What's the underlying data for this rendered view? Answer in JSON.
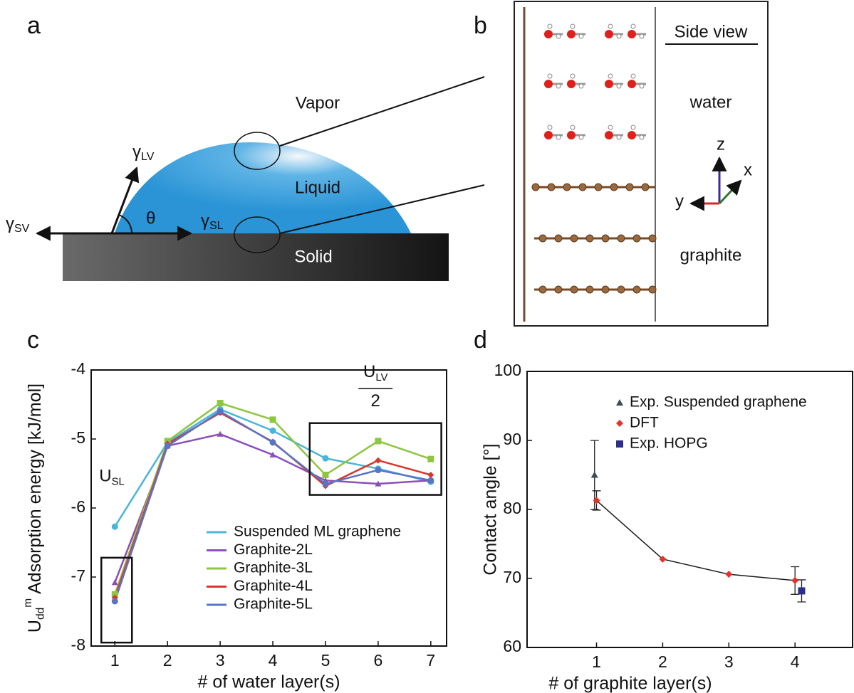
{
  "panel_labels": [
    "a",
    "b",
    "c",
    "d"
  ],
  "diagram_a": {
    "vapor": "Vapor",
    "liquid": "Liquid",
    "solid": "Solid",
    "gamma_lv": {
      "symbol": "γ",
      "sub": "LV"
    },
    "gamma_sl": {
      "symbol": "γ",
      "sub": "SL"
    },
    "gamma_sv": {
      "symbol": "γ",
      "sub": "SV"
    },
    "theta": "θ"
  },
  "diagram_b": {
    "title": "Side  view",
    "water": "water",
    "graphite": "graphite",
    "axes": {
      "z": "z",
      "x": "x",
      "y": "y"
    }
  },
  "chart_data": [
    {
      "type": "line",
      "y_label": {
        "symbol": "U",
        "sub": "dd",
        "sup": "m",
        "text": "Adsorption energy [kJ/mol]"
      },
      "x_label": "# of water layer(s)",
      "x": [
        1,
        2,
        3,
        4,
        5,
        6,
        7
      ],
      "xlim": [
        0.55,
        7.3
      ],
      "xticks": [
        1,
        2,
        3,
        4,
        5,
        6,
        7
      ],
      "ylim": [
        -8,
        -4
      ],
      "yticks": [
        -8,
        -7,
        -6,
        -5,
        -4
      ],
      "legend": "lower right",
      "annotations": [
        {
          "symbol": "U",
          "sub": "SL"
        },
        {
          "symbol": "U",
          "sub": "LV",
          "denominator": "2"
        }
      ],
      "series": [
        {
          "name": "Suspended ML graphene",
          "color": "#4ab5d9",
          "marker": "circle",
          "values": [
            -6.27,
            -5.05,
            -4.57,
            -4.88,
            -5.28,
            -5.43,
            -5.62
          ]
        },
        {
          "name": "Graphite-2L",
          "color": "#8b4fb8",
          "marker": "triangle",
          "values": [
            -7.08,
            -5.1,
            -4.93,
            -5.23,
            -5.6,
            -5.65,
            -5.6
          ]
        },
        {
          "name": "Graphite-3L",
          "color": "#8dc63f",
          "marker": "square",
          "values": [
            -7.25,
            -5.03,
            -4.48,
            -4.72,
            -5.52,
            -5.03,
            -5.29
          ]
        },
        {
          "name": "Graphite-4L",
          "color": "#d9362b",
          "marker": "diamond",
          "values": [
            -7.3,
            -5.07,
            -4.62,
            -5.04,
            -5.68,
            -5.31,
            -5.52
          ]
        },
        {
          "name": "Graphite-5L",
          "color": "#5a74c4",
          "marker": "circle",
          "values": [
            -7.35,
            -5.1,
            -4.6,
            -5.05,
            -5.65,
            -5.45,
            -5.6
          ]
        }
      ]
    },
    {
      "type": "scatter",
      "y_label": "Contact angle [°]",
      "x_label": "# of graphite layer(s)",
      "xlim": [
        -0.05,
        4.87
      ],
      "xticks": [
        1,
        2,
        3,
        4
      ],
      "ylim": [
        60,
        100
      ],
      "yticks": [
        60,
        70,
        80,
        90,
        100
      ],
      "legend": "upper right",
      "series": [
        {
          "name": "Exp. Suspended graphene",
          "color": "#3d4b52",
          "marker": "triangle",
          "x": [
            0.97
          ],
          "values": [
            85
          ],
          "errors": [
            5
          ]
        },
        {
          "name": "DFT",
          "color": "#e8312a",
          "marker": "diamond",
          "line_color": "#1a1a1a",
          "x": [
            1,
            2,
            3,
            4
          ],
          "values": [
            81.3,
            72.8,
            70.6,
            69.7
          ],
          "errors": [
            1.4,
            null,
            null,
            2
          ]
        },
        {
          "name": "Exp. HOPG",
          "color": "#2b2f8a",
          "marker": "square",
          "x": [
            4.1
          ],
          "values": [
            68.2
          ],
          "errors": [
            1.6
          ]
        }
      ]
    }
  ]
}
